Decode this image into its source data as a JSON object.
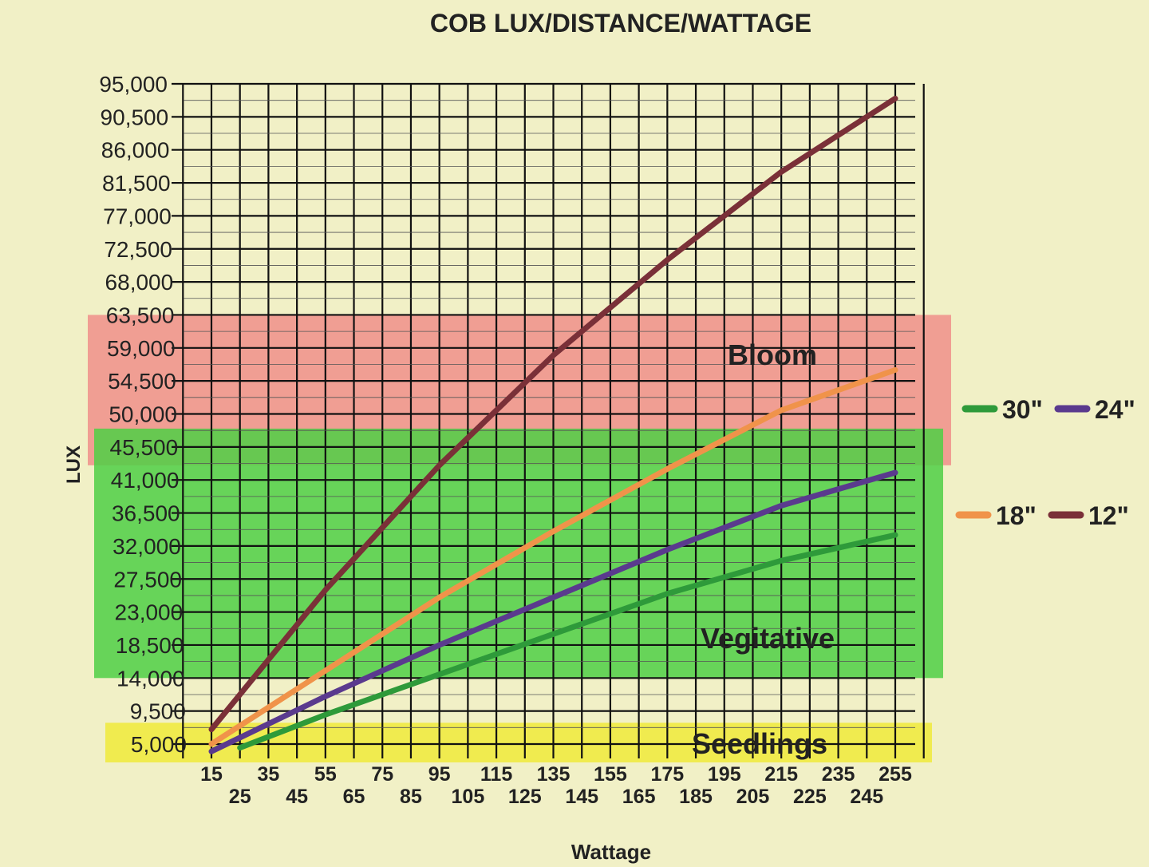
{
  "chart_data": {
    "type": "line",
    "title": "COB LUX/DISTANCE/WATTAGE",
    "xlabel": "Wattage",
    "ylabel": "LUX",
    "xlim": [
      15,
      255
    ],
    "ylim": [
      5000,
      95000
    ],
    "grid": true,
    "legend_position": "right",
    "x_ticks": [
      "15",
      "25",
      "35",
      "45",
      "55",
      "65",
      "75",
      "85",
      "95",
      "105",
      "115",
      "125",
      "135",
      "145",
      "155",
      "165",
      "175",
      "185",
      "195",
      "205",
      "215",
      "225",
      "235",
      "245",
      "255"
    ],
    "y_ticks": [
      "95,000",
      "90,500",
      "86,000",
      "81,500",
      "77,000",
      "72,500",
      "68,000",
      "63,500",
      "59,000",
      "54,500",
      "50,000",
      "45,500",
      "41,000",
      "36,500",
      "32,000",
      "27,500",
      "23,000",
      "18,500",
      "14,000",
      "9,500",
      "5,000"
    ],
    "bands": [
      {
        "label": "Bloom",
        "from": 43000,
        "to": 63500,
        "color": "#f08f8a"
      },
      {
        "label": "Vegitative",
        "from": 14000,
        "to": 48000,
        "color": "#4fcf45"
      },
      {
        "label": "Seedlings",
        "from": 2500,
        "to": 7900,
        "color": "#f0ea3a"
      }
    ],
    "series": [
      {
        "name": "30\"",
        "color": "#2e9a3a",
        "x": [
          25,
          55,
          95,
          135,
          175,
          215,
          255
        ],
        "y": [
          4500,
          9000,
          14500,
          20000,
          25500,
          30000,
          33500
        ]
      },
      {
        "name": "24\"",
        "color": "#5a3a8e",
        "x": [
          15,
          55,
          95,
          135,
          175,
          215,
          255
        ],
        "y": [
          4000,
          11500,
          18500,
          25000,
          31500,
          37500,
          42000
        ]
      },
      {
        "name": "18\"",
        "color": "#f0934a",
        "x": [
          15,
          55,
          95,
          135,
          175,
          215,
          255
        ],
        "y": [
          5000,
          15000,
          25000,
          34000,
          42500,
          50500,
          56000
        ]
      },
      {
        "name": "12\"",
        "color": "#7a3038",
        "x": [
          15,
          55,
          95,
          135,
          175,
          215,
          255
        ],
        "y": [
          7000,
          26000,
          43000,
          58000,
          71000,
          83000,
          93000
        ]
      }
    ]
  }
}
